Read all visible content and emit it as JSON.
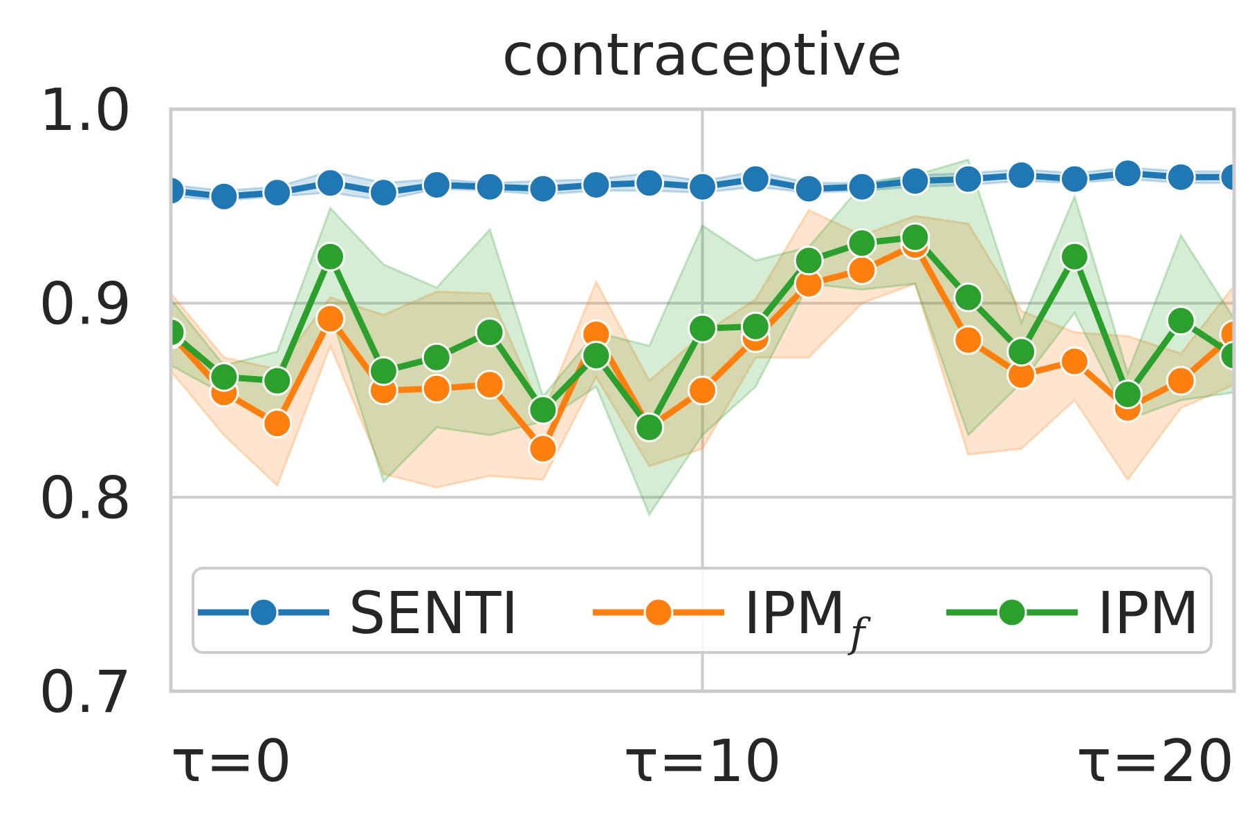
{
  "chart_data": {
    "type": "line",
    "title": "contraceptive",
    "xlabel": "",
    "ylabel": "",
    "x": [
      0,
      1,
      2,
      3,
      4,
      5,
      6,
      7,
      8,
      9,
      10,
      11,
      12,
      13,
      14,
      15,
      16,
      17,
      18,
      19,
      20
    ],
    "xlim": [
      0,
      20
    ],
    "ylim": [
      0.7,
      1.0
    ],
    "xticks": [
      0,
      10,
      20
    ],
    "xtick_labels": [
      "τ=0",
      "τ=10",
      "τ=20"
    ],
    "yticks": [
      0.7,
      0.8,
      0.9,
      1.0
    ],
    "ytick_labels": [
      "0.7",
      "0.8",
      "0.9",
      "1.0"
    ],
    "grid": true,
    "legend_position": "lower-center",
    "series": [
      {
        "name": "SENTI",
        "name_sub": "",
        "color": "#1f77b4",
        "values": [
          0.958,
          0.955,
          0.957,
          0.962,
          0.957,
          0.961,
          0.96,
          0.959,
          0.961,
          0.962,
          0.96,
          0.964,
          0.959,
          0.96,
          0.963,
          0.964,
          0.966,
          0.964,
          0.967,
          0.965,
          0.965
        ],
        "lower": [
          0.955,
          0.953,
          0.955,
          0.957,
          0.953,
          0.959,
          0.958,
          0.956,
          0.958,
          0.958,
          0.957,
          0.96,
          0.957,
          0.958,
          0.96,
          0.961,
          0.963,
          0.962,
          0.964,
          0.962,
          0.962
        ],
        "upper": [
          0.961,
          0.958,
          0.96,
          0.968,
          0.962,
          0.964,
          0.962,
          0.963,
          0.964,
          0.967,
          0.963,
          0.968,
          0.962,
          0.962,
          0.966,
          0.967,
          0.969,
          0.967,
          0.97,
          0.968,
          0.968
        ]
      },
      {
        "name": "IPM",
        "name_sub": "f",
        "color": "#ff7f0e",
        "values": [
          0.884,
          0.854,
          0.838,
          0.892,
          0.855,
          0.856,
          0.858,
          0.825,
          0.884,
          0.836,
          0.855,
          0.882,
          0.91,
          0.917,
          0.93,
          0.881,
          0.863,
          0.87,
          0.846,
          0.86,
          0.884
        ],
        "lower": [
          0.865,
          0.832,
          0.806,
          0.878,
          0.812,
          0.805,
          0.811,
          0.809,
          0.862,
          0.816,
          0.825,
          0.872,
          0.872,
          0.9,
          0.91,
          0.822,
          0.825,
          0.85,
          0.809,
          0.846,
          0.858
        ],
        "upper": [
          0.905,
          0.872,
          0.866,
          0.903,
          0.894,
          0.906,
          0.905,
          0.843,
          0.911,
          0.86,
          0.884,
          0.902,
          0.948,
          0.935,
          0.945,
          0.941,
          0.896,
          0.885,
          0.883,
          0.874,
          0.909
        ]
      },
      {
        "name": "IPM",
        "name_sub": "",
        "color": "#2ca02c",
        "values": [
          0.885,
          0.862,
          0.86,
          0.924,
          0.865,
          0.872,
          0.885,
          0.845,
          0.873,
          0.836,
          0.887,
          0.888,
          0.922,
          0.931,
          0.934,
          0.903,
          0.875,
          0.924,
          0.853,
          0.891,
          0.873
        ],
        "lower": [
          0.868,
          0.853,
          0.837,
          0.895,
          0.808,
          0.836,
          0.832,
          0.839,
          0.857,
          0.791,
          0.832,
          0.857,
          0.91,
          0.907,
          0.91,
          0.832,
          0.859,
          0.895,
          0.84,
          0.85,
          0.854
        ],
        "upper": [
          0.902,
          0.868,
          0.875,
          0.949,
          0.92,
          0.908,
          0.938,
          0.852,
          0.885,
          0.878,
          0.94,
          0.922,
          0.929,
          0.961,
          0.966,
          0.974,
          0.89,
          0.955,
          0.864,
          0.935,
          0.892
        ]
      }
    ]
  }
}
